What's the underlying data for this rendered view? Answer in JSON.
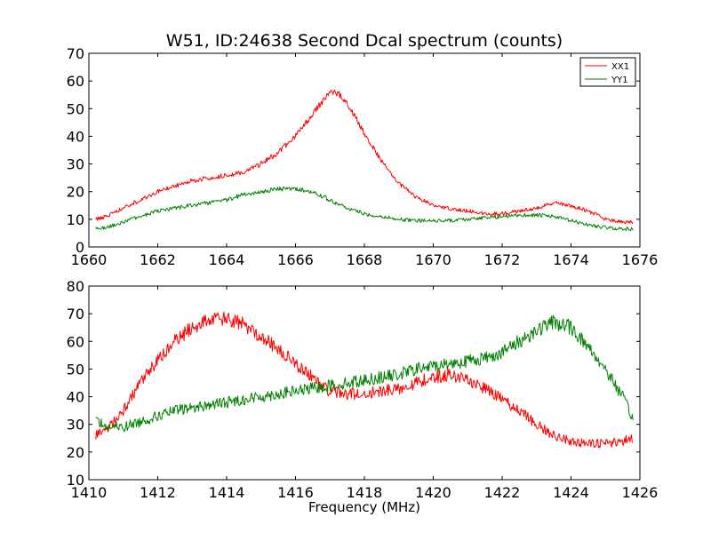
{
  "chart_data": [
    {
      "type": "line",
      "title": "W51, ID:24638 Second Dcal spectrum (counts)",
      "xlabel": "",
      "ylabel": "",
      "xlim": [
        1660,
        1676
      ],
      "ylim": [
        0,
        70
      ],
      "xticks": [
        "1660",
        "1662",
        "1664",
        "1666",
        "1668",
        "1670",
        "1672",
        "1674",
        "1676"
      ],
      "yticks": [
        "0",
        "10",
        "20",
        "30",
        "40",
        "50",
        "60",
        "70"
      ],
      "legend": {
        "placement": "top-right",
        "entries": [
          "XX1",
          "YY1"
        ]
      },
      "series": [
        {
          "name": "XX1",
          "color": "#ff0000",
          "x": [
            1660.2,
            1660.5,
            1661.0,
            1661.5,
            1662.0,
            1662.5,
            1663.0,
            1663.5,
            1664.0,
            1664.5,
            1665.0,
            1665.5,
            1666.0,
            1666.5,
            1666.8,
            1667.0,
            1667.3,
            1667.6,
            1668.0,
            1668.5,
            1669.0,
            1669.5,
            1670.0,
            1670.5,
            1671.0,
            1671.5,
            1672.0,
            1672.5,
            1673.0,
            1673.5,
            1674.0,
            1674.5,
            1675.0,
            1675.5,
            1675.8
          ],
          "y": [
            10,
            11,
            14,
            17,
            20,
            22,
            24,
            25,
            26,
            27,
            30,
            34,
            40,
            48,
            53,
            56,
            55,
            50,
            41,
            31,
            23,
            18,
            15,
            14,
            13,
            12,
            12,
            13,
            14,
            16,
            15,
            13,
            10,
            9,
            9
          ]
        },
        {
          "name": "YY1",
          "color": "#008000",
          "x": [
            1660.2,
            1660.5,
            1661.0,
            1661.5,
            1662.0,
            1662.5,
            1663.0,
            1663.5,
            1664.0,
            1664.5,
            1665.0,
            1665.5,
            1666.0,
            1666.5,
            1667.0,
            1667.5,
            1668.0,
            1668.5,
            1669.0,
            1669.5,
            1670.0,
            1670.5,
            1671.0,
            1671.5,
            1672.0,
            1672.5,
            1673.0,
            1673.5,
            1674.0,
            1674.5,
            1675.0,
            1675.5,
            1675.8
          ],
          "y": [
            7,
            7,
            9,
            11,
            13,
            14,
            15,
            16,
            17,
            19,
            20,
            21,
            21,
            20,
            17,
            14,
            12,
            11,
            10,
            9.5,
            9.5,
            9.5,
            10,
            10.5,
            11,
            11.5,
            11.5,
            11,
            9.5,
            8,
            7,
            6.5,
            6.5
          ]
        }
      ]
    },
    {
      "type": "line",
      "title": "",
      "xlabel": "Frequency (MHz)",
      "ylabel": "",
      "xlim": [
        1410,
        1426
      ],
      "ylim": [
        10,
        80
      ],
      "xticks": [
        "1410",
        "1412",
        "1414",
        "1416",
        "1418",
        "1420",
        "1422",
        "1424",
        "1426"
      ],
      "yticks": [
        "10",
        "20",
        "30",
        "40",
        "50",
        "60",
        "70",
        "80"
      ],
      "series": [
        {
          "name": "XX1",
          "color": "#ff0000",
          "x": [
            1410.2,
            1410.5,
            1411.0,
            1411.5,
            1412.0,
            1412.5,
            1413.0,
            1413.5,
            1414.0,
            1414.5,
            1415.0,
            1415.5,
            1416.0,
            1416.5,
            1417.0,
            1417.5,
            1418.0,
            1418.5,
            1419.0,
            1419.5,
            1420.0,
            1420.5,
            1421.0,
            1421.5,
            1422.0,
            1422.5,
            1423.0,
            1423.5,
            1424.0,
            1424.5,
            1425.0,
            1425.5,
            1425.8
          ],
          "y": [
            26,
            28,
            35,
            45,
            53,
            60,
            65,
            68,
            68,
            66,
            62,
            57,
            52,
            47,
            42,
            41,
            41,
            42,
            43,
            45,
            47,
            48,
            46,
            43,
            39,
            35,
            30,
            26,
            24,
            23,
            23,
            24,
            25
          ]
        },
        {
          "name": "YY1",
          "color": "#008000",
          "x": [
            1410.2,
            1410.5,
            1411.0,
            1411.5,
            1412.0,
            1412.5,
            1413.0,
            1413.5,
            1414.0,
            1414.5,
            1415.0,
            1415.5,
            1416.0,
            1416.5,
            1417.0,
            1417.5,
            1418.0,
            1418.5,
            1419.0,
            1419.5,
            1420.0,
            1420.5,
            1421.0,
            1421.5,
            1422.0,
            1422.5,
            1423.0,
            1423.5,
            1424.0,
            1424.5,
            1425.0,
            1425.5,
            1425.8
          ],
          "y": [
            32,
            29,
            29,
            31,
            33,
            35,
            36,
            37,
            38,
            39,
            40,
            41,
            42,
            43,
            44,
            45,
            46,
            47,
            48,
            50,
            51,
            52,
            53,
            54,
            56,
            60,
            64,
            67,
            65,
            58,
            50,
            40,
            32
          ]
        }
      ]
    }
  ]
}
